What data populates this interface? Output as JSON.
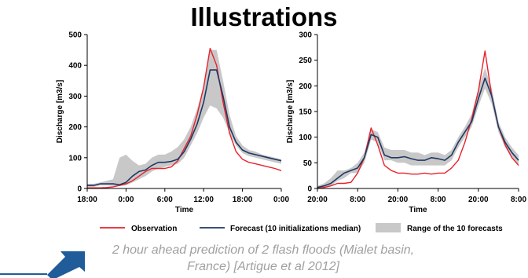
{
  "slide": {
    "title": "Illustrations",
    "caption_line1": "2 hour ahead prediction of 2 flash floods (Mialet basin,",
    "caption_line2": "France) [Artigue et al 2012]"
  },
  "legend": {
    "observation": "Observation",
    "forecast": "Forecast (10 initializations median)",
    "range": "Range of the 10 forecasts"
  },
  "colors": {
    "observation": "#e8212a",
    "forecast": "#1f3864",
    "range": "#c8c8c8",
    "logo": "#1f5c99"
  },
  "chart_data": [
    {
      "type": "line",
      "xlabel": "Time",
      "ylabel": "Discharge [m3/s]",
      "ylim": [
        0,
        500
      ],
      "yticks": [
        0,
        100,
        200,
        300,
        400,
        500
      ],
      "xtick_labels": [
        "18:00",
        "0:00",
        "6:00",
        "12:00",
        "18:00",
        "0:00"
      ],
      "xlim": [
        0,
        30
      ],
      "x": [
        0,
        1,
        2,
        3,
        4,
        5,
        6,
        7,
        8,
        9,
        10,
        11,
        12,
        13,
        14,
        15,
        16,
        17,
        18,
        19,
        20,
        21,
        22,
        23,
        24,
        25,
        26,
        27,
        28,
        29,
        30
      ],
      "series": [
        {
          "name": "Observation",
          "values": [
            2,
            2,
            2,
            3,
            5,
            10,
            15,
            25,
            40,
            55,
            65,
            65,
            65,
            70,
            90,
            130,
            170,
            240,
            330,
            455,
            400,
            280,
            180,
            120,
            95,
            85,
            80,
            75,
            70,
            65,
            58
          ]
        },
        {
          "name": "Forecast (10 initializations median)",
          "values": [
            10,
            10,
            15,
            15,
            15,
            12,
            20,
            40,
            55,
            60,
            75,
            85,
            85,
            88,
            95,
            120,
            160,
            210,
            280,
            385,
            385,
            300,
            200,
            150,
            125,
            115,
            110,
            105,
            100,
            95,
            90
          ]
        },
        {
          "name": "Range of the 10 forecasts",
          "low": [
            5,
            5,
            10,
            10,
            8,
            8,
            10,
            20,
            30,
            40,
            55,
            65,
            70,
            75,
            80,
            100,
            140,
            180,
            230,
            270,
            260,
            230,
            180,
            140,
            115,
            105,
            100,
            95,
            90,
            85,
            80
          ],
          "high": [
            15,
            15,
            20,
            25,
            30,
            100,
            110,
            90,
            75,
            80,
            100,
            110,
            110,
            120,
            135,
            160,
            200,
            260,
            330,
            450,
            450,
            350,
            240,
            170,
            140,
            125,
            120,
            110,
            105,
            100,
            95
          ]
        }
      ]
    },
    {
      "type": "line",
      "xlabel": "Time",
      "ylabel": "Discharge [m3/s]",
      "ylim": [
        0,
        300
      ],
      "yticks": [
        0,
        50,
        100,
        150,
        200,
        250,
        300
      ],
      "xtick_labels": [
        "20:00",
        "8:00",
        "20:00",
        "8:00",
        "20:00",
        "8:00"
      ],
      "xlim": [
        0,
        30
      ],
      "x": [
        0,
        1,
        2,
        3,
        4,
        5,
        6,
        7,
        8,
        9,
        10,
        11,
        12,
        13,
        14,
        15,
        16,
        17,
        18,
        19,
        20,
        21,
        22,
        23,
        24,
        25,
        26,
        27,
        28,
        29,
        30
      ],
      "series": [
        {
          "name": "Observation",
          "values": [
            0,
            2,
            5,
            10,
            10,
            12,
            30,
            60,
            118,
            85,
            45,
            35,
            30,
            30,
            28,
            28,
            30,
            28,
            30,
            30,
            40,
            55,
            90,
            135,
            190,
            268,
            180,
            120,
            85,
            60,
            45
          ]
        },
        {
          "name": "Forecast (10 initializations median)",
          "values": [
            2,
            5,
            10,
            20,
            30,
            35,
            40,
            60,
            105,
            100,
            65,
            60,
            60,
            62,
            58,
            55,
            55,
            60,
            58,
            55,
            65,
            90,
            110,
            130,
            175,
            215,
            180,
            120,
            90,
            70,
            55
          ]
        },
        {
          "name": "Range of the 10 forecasts",
          "low": [
            0,
            2,
            5,
            15,
            20,
            30,
            30,
            50,
            95,
            90,
            55,
            55,
            50,
            50,
            45,
            45,
            45,
            45,
            45,
            45,
            55,
            80,
            100,
            120,
            160,
            195,
            165,
            110,
            80,
            60,
            45
          ],
          "high": [
            5,
            10,
            20,
            35,
            35,
            40,
            50,
            70,
            115,
            110,
            80,
            75,
            75,
            75,
            70,
            70,
            65,
            70,
            70,
            65,
            75,
            100,
            120,
            145,
            195,
            235,
            195,
            130,
            100,
            80,
            65
          ]
        }
      ]
    }
  ]
}
